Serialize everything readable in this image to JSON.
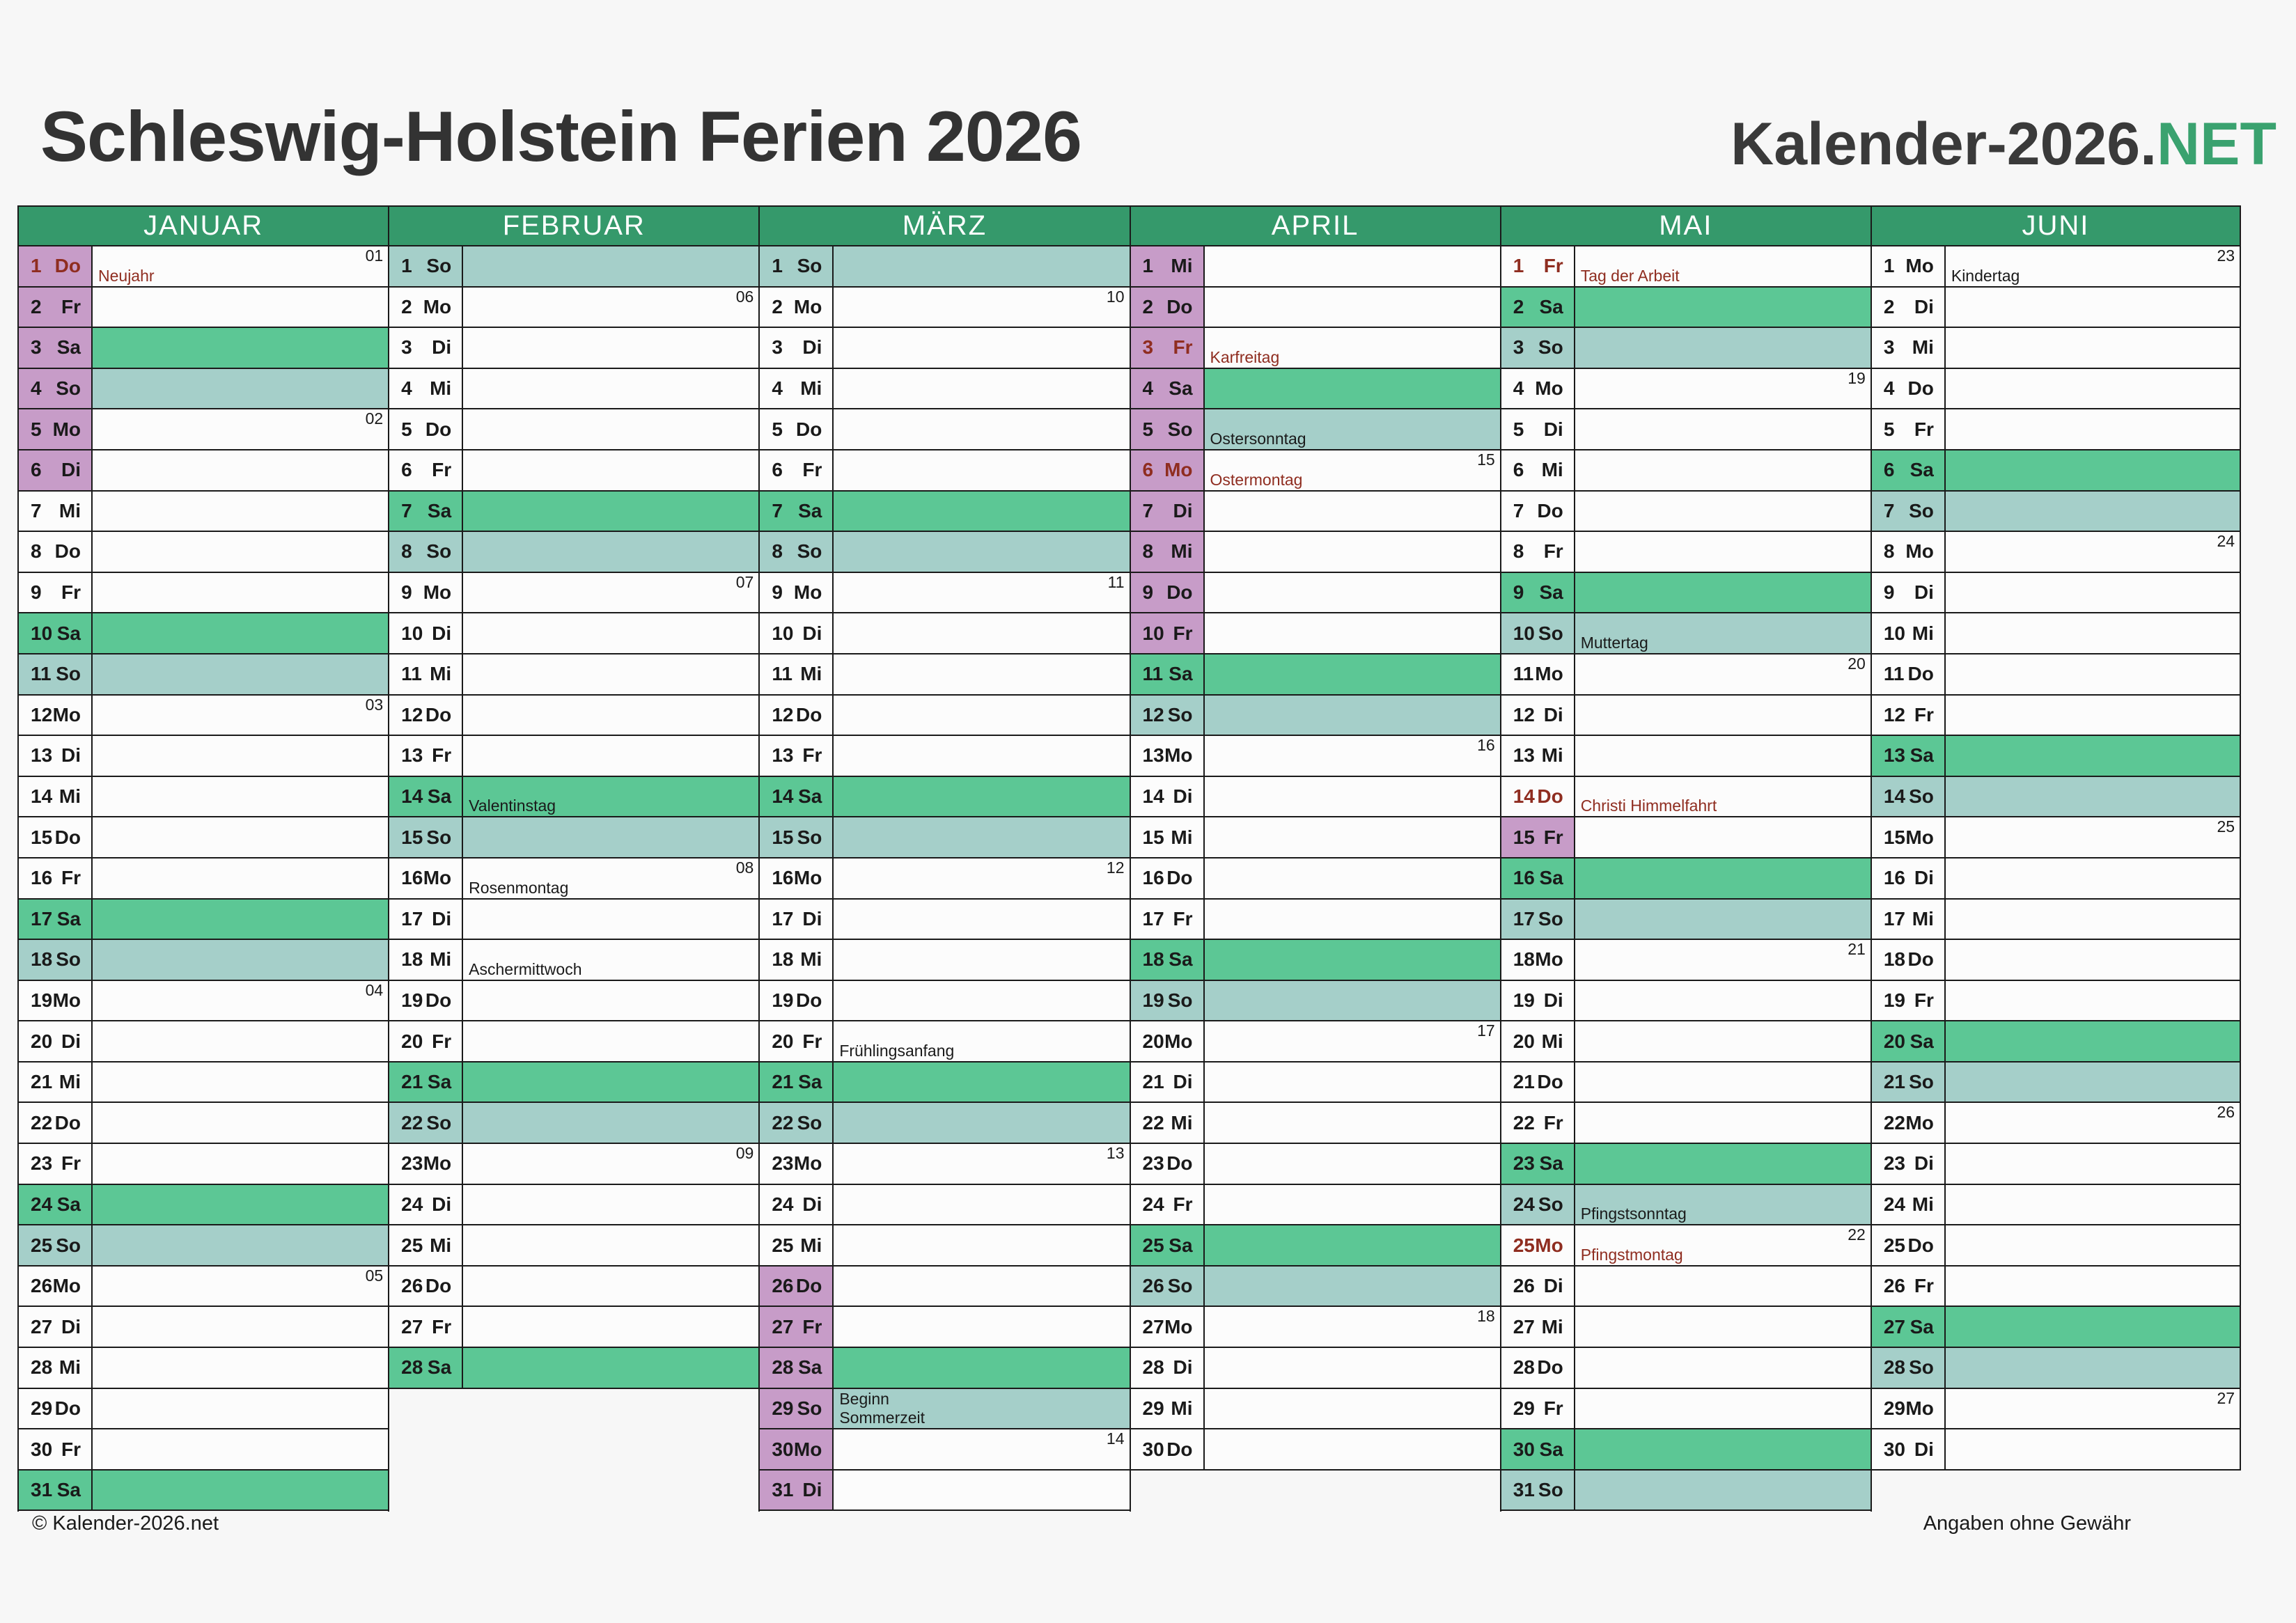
{
  "title": "Schleswig-Holstein Ferien 2026",
  "logo": {
    "prefix": "Kalender-2026.",
    "suffix": "NET"
  },
  "footer": {
    "left": "© Kalender-2026.net",
    "right": "Angaben ohne Gewähr"
  },
  "colors": {
    "header_green": "#35996B",
    "saturday_green": "#5CC795",
    "sunday_teal": "#A5CFC9",
    "ferien_purple": "#C79CC8",
    "holiday_red": "#8F2D20",
    "logo_green": "#3AA26F",
    "border": "#1A1A1A"
  },
  "months": [
    {
      "name": "JANUAR",
      "days": [
        {
          "d": 1,
          "w": "Do",
          "f": 1,
          "h": 1,
          "wk": "01",
          "n": "Neujahr",
          "nr": 1
        },
        {
          "d": 2,
          "w": "Fr",
          "f": 1
        },
        {
          "d": 3,
          "w": "Sa",
          "f": 1
        },
        {
          "d": 4,
          "w": "So",
          "f": 1
        },
        {
          "d": 5,
          "w": "Mo",
          "f": 1,
          "wk": "02"
        },
        {
          "d": 6,
          "w": "Di",
          "f": 1
        },
        {
          "d": 7,
          "w": "Mi"
        },
        {
          "d": 8,
          "w": "Do"
        },
        {
          "d": 9,
          "w": "Fr"
        },
        {
          "d": 10,
          "w": "Sa"
        },
        {
          "d": 11,
          "w": "So"
        },
        {
          "d": 12,
          "w": "Mo",
          "wk": "03"
        },
        {
          "d": 13,
          "w": "Di"
        },
        {
          "d": 14,
          "w": "Mi"
        },
        {
          "d": 15,
          "w": "Do"
        },
        {
          "d": 16,
          "w": "Fr"
        },
        {
          "d": 17,
          "w": "Sa"
        },
        {
          "d": 18,
          "w": "So"
        },
        {
          "d": 19,
          "w": "Mo",
          "wk": "04"
        },
        {
          "d": 20,
          "w": "Di"
        },
        {
          "d": 21,
          "w": "Mi"
        },
        {
          "d": 22,
          "w": "Do"
        },
        {
          "d": 23,
          "w": "Fr"
        },
        {
          "d": 24,
          "w": "Sa"
        },
        {
          "d": 25,
          "w": "So"
        },
        {
          "d": 26,
          "w": "Mo",
          "wk": "05"
        },
        {
          "d": 27,
          "w": "Di"
        },
        {
          "d": 28,
          "w": "Mi"
        },
        {
          "d": 29,
          "w": "Do"
        },
        {
          "d": 30,
          "w": "Fr"
        },
        {
          "d": 31,
          "w": "Sa"
        }
      ]
    },
    {
      "name": "FEBRUAR",
      "days": [
        {
          "d": 1,
          "w": "So"
        },
        {
          "d": 2,
          "w": "Mo",
          "wk": "06"
        },
        {
          "d": 3,
          "w": "Di"
        },
        {
          "d": 4,
          "w": "Mi"
        },
        {
          "d": 5,
          "w": "Do"
        },
        {
          "d": 6,
          "w": "Fr"
        },
        {
          "d": 7,
          "w": "Sa"
        },
        {
          "d": 8,
          "w": "So"
        },
        {
          "d": 9,
          "w": "Mo",
          "wk": "07"
        },
        {
          "d": 10,
          "w": "Di"
        },
        {
          "d": 11,
          "w": "Mi"
        },
        {
          "d": 12,
          "w": "Do"
        },
        {
          "d": 13,
          "w": "Fr"
        },
        {
          "d": 14,
          "w": "Sa",
          "n": "Valentinstag"
        },
        {
          "d": 15,
          "w": "So"
        },
        {
          "d": 16,
          "w": "Mo",
          "wk": "08",
          "n": "Rosenmontag"
        },
        {
          "d": 17,
          "w": "Di"
        },
        {
          "d": 18,
          "w": "Mi",
          "n": "Aschermittwoch"
        },
        {
          "d": 19,
          "w": "Do"
        },
        {
          "d": 20,
          "w": "Fr"
        },
        {
          "d": 21,
          "w": "Sa"
        },
        {
          "d": 22,
          "w": "So"
        },
        {
          "d": 23,
          "w": "Mo",
          "wk": "09"
        },
        {
          "d": 24,
          "w": "Di"
        },
        {
          "d": 25,
          "w": "Mi"
        },
        {
          "d": 26,
          "w": "Do"
        },
        {
          "d": 27,
          "w": "Fr"
        },
        {
          "d": 28,
          "w": "Sa"
        }
      ]
    },
    {
      "name": "MÄRZ",
      "days": [
        {
          "d": 1,
          "w": "So"
        },
        {
          "d": 2,
          "w": "Mo",
          "wk": "10"
        },
        {
          "d": 3,
          "w": "Di"
        },
        {
          "d": 4,
          "w": "Mi"
        },
        {
          "d": 5,
          "w": "Do"
        },
        {
          "d": 6,
          "w": "Fr"
        },
        {
          "d": 7,
          "w": "Sa"
        },
        {
          "d": 8,
          "w": "So"
        },
        {
          "d": 9,
          "w": "Mo",
          "wk": "11"
        },
        {
          "d": 10,
          "w": "Di"
        },
        {
          "d": 11,
          "w": "Mi"
        },
        {
          "d": 12,
          "w": "Do"
        },
        {
          "d": 13,
          "w": "Fr"
        },
        {
          "d": 14,
          "w": "Sa"
        },
        {
          "d": 15,
          "w": "So"
        },
        {
          "d": 16,
          "w": "Mo",
          "wk": "12"
        },
        {
          "d": 17,
          "w": "Di"
        },
        {
          "d": 18,
          "w": "Mi"
        },
        {
          "d": 19,
          "w": "Do"
        },
        {
          "d": 20,
          "w": "Fr",
          "n": "Frühlingsanfang"
        },
        {
          "d": 21,
          "w": "Sa"
        },
        {
          "d": 22,
          "w": "So"
        },
        {
          "d": 23,
          "w": "Mo",
          "wk": "13"
        },
        {
          "d": 24,
          "w": "Di"
        },
        {
          "d": 25,
          "w": "Mi"
        },
        {
          "d": 26,
          "w": "Do",
          "f": 1
        },
        {
          "d": 27,
          "w": "Fr",
          "f": 1
        },
        {
          "d": 28,
          "w": "Sa",
          "f": 1
        },
        {
          "d": 29,
          "w": "So",
          "f": 1,
          "n": "Beginn\nSommerzeit"
        },
        {
          "d": 30,
          "w": "Mo",
          "f": 1,
          "wk": "14"
        },
        {
          "d": 31,
          "w": "Di",
          "f": 1
        }
      ]
    },
    {
      "name": "APRIL",
      "days": [
        {
          "d": 1,
          "w": "Mi",
          "f": 1
        },
        {
          "d": 2,
          "w": "Do",
          "f": 1
        },
        {
          "d": 3,
          "w": "Fr",
          "f": 1,
          "h": 1,
          "n": "Karfreitag",
          "nr": 1
        },
        {
          "d": 4,
          "w": "Sa",
          "f": 1
        },
        {
          "d": 5,
          "w": "So",
          "f": 1,
          "n": "Ostersonntag"
        },
        {
          "d": 6,
          "w": "Mo",
          "f": 1,
          "h": 1,
          "wk": "15",
          "n": "Ostermontag",
          "nr": 1
        },
        {
          "d": 7,
          "w": "Di",
          "f": 1
        },
        {
          "d": 8,
          "w": "Mi",
          "f": 1
        },
        {
          "d": 9,
          "w": "Do",
          "f": 1
        },
        {
          "d": 10,
          "w": "Fr",
          "f": 1
        },
        {
          "d": 11,
          "w": "Sa"
        },
        {
          "d": 12,
          "w": "So"
        },
        {
          "d": 13,
          "w": "Mo",
          "wk": "16"
        },
        {
          "d": 14,
          "w": "Di"
        },
        {
          "d": 15,
          "w": "Mi"
        },
        {
          "d": 16,
          "w": "Do"
        },
        {
          "d": 17,
          "w": "Fr"
        },
        {
          "d": 18,
          "w": "Sa"
        },
        {
          "d": 19,
          "w": "So"
        },
        {
          "d": 20,
          "w": "Mo",
          "wk": "17"
        },
        {
          "d": 21,
          "w": "Di"
        },
        {
          "d": 22,
          "w": "Mi"
        },
        {
          "d": 23,
          "w": "Do"
        },
        {
          "d": 24,
          "w": "Fr"
        },
        {
          "d": 25,
          "w": "Sa"
        },
        {
          "d": 26,
          "w": "So"
        },
        {
          "d": 27,
          "w": "Mo",
          "wk": "18"
        },
        {
          "d": 28,
          "w": "Di"
        },
        {
          "d": 29,
          "w": "Mi"
        },
        {
          "d": 30,
          "w": "Do"
        }
      ]
    },
    {
      "name": "MAI",
      "days": [
        {
          "d": 1,
          "w": "Fr",
          "h": 1,
          "n": "Tag der Arbeit",
          "nr": 1
        },
        {
          "d": 2,
          "w": "Sa"
        },
        {
          "d": 3,
          "w": "So"
        },
        {
          "d": 4,
          "w": "Mo",
          "wk": "19"
        },
        {
          "d": 5,
          "w": "Di"
        },
        {
          "d": 6,
          "w": "Mi"
        },
        {
          "d": 7,
          "w": "Do"
        },
        {
          "d": 8,
          "w": "Fr"
        },
        {
          "d": 9,
          "w": "Sa"
        },
        {
          "d": 10,
          "w": "So",
          "n": "Muttertag"
        },
        {
          "d": 11,
          "w": "Mo",
          "wk": "20"
        },
        {
          "d": 12,
          "w": "Di"
        },
        {
          "d": 13,
          "w": "Mi"
        },
        {
          "d": 14,
          "w": "Do",
          "h": 1,
          "n": "Christi Himmelfahrt",
          "nr": 1
        },
        {
          "d": 15,
          "w": "Fr",
          "f": 1
        },
        {
          "d": 16,
          "w": "Sa"
        },
        {
          "d": 17,
          "w": "So"
        },
        {
          "d": 18,
          "w": "Mo",
          "wk": "21"
        },
        {
          "d": 19,
          "w": "Di"
        },
        {
          "d": 20,
          "w": "Mi"
        },
        {
          "d": 21,
          "w": "Do"
        },
        {
          "d": 22,
          "w": "Fr"
        },
        {
          "d": 23,
          "w": "Sa"
        },
        {
          "d": 24,
          "w": "So",
          "n": "Pfingstsonntag"
        },
        {
          "d": 25,
          "w": "Mo",
          "h": 1,
          "wk": "22",
          "n": "Pfingstmontag",
          "nr": 1
        },
        {
          "d": 26,
          "w": "Di"
        },
        {
          "d": 27,
          "w": "Mi"
        },
        {
          "d": 28,
          "w": "Do"
        },
        {
          "d": 29,
          "w": "Fr"
        },
        {
          "d": 30,
          "w": "Sa"
        },
        {
          "d": 31,
          "w": "So"
        }
      ]
    },
    {
      "name": "JUNI",
      "days": [
        {
          "d": 1,
          "w": "Mo",
          "wk": "23",
          "n": "Kindertag"
        },
        {
          "d": 2,
          "w": "Di"
        },
        {
          "d": 3,
          "w": "Mi"
        },
        {
          "d": 4,
          "w": "Do"
        },
        {
          "d": 5,
          "w": "Fr"
        },
        {
          "d": 6,
          "w": "Sa"
        },
        {
          "d": 7,
          "w": "So"
        },
        {
          "d": 8,
          "w": "Mo",
          "wk": "24"
        },
        {
          "d": 9,
          "w": "Di"
        },
        {
          "d": 10,
          "w": "Mi"
        },
        {
          "d": 11,
          "w": "Do"
        },
        {
          "d": 12,
          "w": "Fr"
        },
        {
          "d": 13,
          "w": "Sa"
        },
        {
          "d": 14,
          "w": "So"
        },
        {
          "d": 15,
          "w": "Mo",
          "wk": "25"
        },
        {
          "d": 16,
          "w": "Di"
        },
        {
          "d": 17,
          "w": "Mi"
        },
        {
          "d": 18,
          "w": "Do"
        },
        {
          "d": 19,
          "w": "Fr"
        },
        {
          "d": 20,
          "w": "Sa"
        },
        {
          "d": 21,
          "w": "So"
        },
        {
          "d": 22,
          "w": "Mo",
          "wk": "26"
        },
        {
          "d": 23,
          "w": "Di"
        },
        {
          "d": 24,
          "w": "Mi"
        },
        {
          "d": 25,
          "w": "Do"
        },
        {
          "d": 26,
          "w": "Fr"
        },
        {
          "d": 27,
          "w": "Sa"
        },
        {
          "d": 28,
          "w": "So"
        },
        {
          "d": 29,
          "w": "Mo",
          "wk": "27"
        },
        {
          "d": 30,
          "w": "Di"
        }
      ]
    }
  ]
}
